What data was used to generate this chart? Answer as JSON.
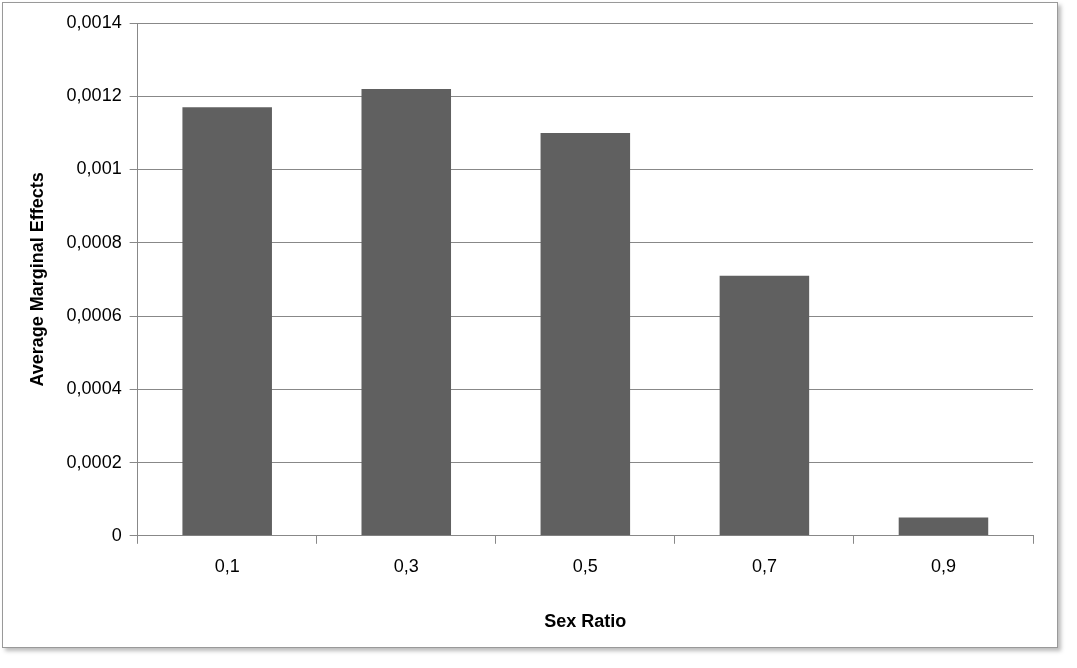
{
  "chart_data": {
    "type": "bar",
    "xlabel": "Sex Ratio",
    "ylabel": "Average Marginal Effects",
    "categories": [
      "0,1",
      "0,3",
      "0,5",
      "0,7",
      "0,9"
    ],
    "values": [
      0.00117,
      0.00122,
      0.0011,
      0.00071,
      5e-05
    ],
    "color": "#606060",
    "ylim": [
      0,
      0.0014
    ],
    "yticks": [
      {
        "value": 0,
        "label": "0"
      },
      {
        "value": 0.0002,
        "label": "0,0002"
      },
      {
        "value": 0.0004,
        "label": "0,0004"
      },
      {
        "value": 0.0006,
        "label": "0,0006"
      },
      {
        "value": 0.0008,
        "label": "0,0008"
      },
      {
        "value": 0.001,
        "label": "0,001"
      },
      {
        "value": 0.0012,
        "label": "0,0012"
      },
      {
        "value": 0.0014,
        "label": "0,0014"
      }
    ],
    "grid": "y",
    "legend": false
  }
}
